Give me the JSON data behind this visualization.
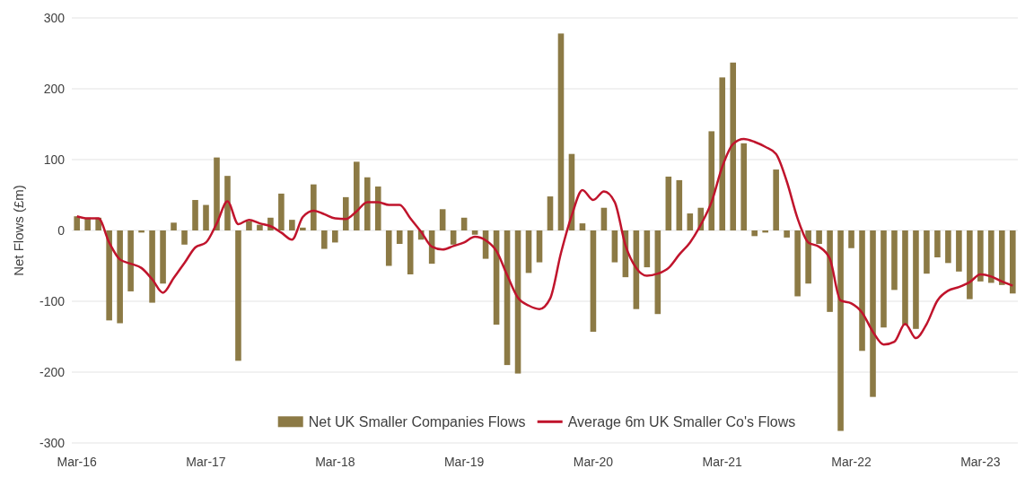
{
  "chart_data": {
    "type": "bar",
    "ylabel": "Net Flows (£m)",
    "categories": [
      "Mar-16",
      null,
      null,
      null,
      null,
      null,
      null,
      null,
      null,
      null,
      null,
      null,
      "Mar-17",
      null,
      null,
      null,
      null,
      null,
      null,
      null,
      null,
      null,
      null,
      null,
      "Mar-18",
      null,
      null,
      null,
      null,
      null,
      null,
      null,
      null,
      null,
      null,
      null,
      "Mar-19",
      null,
      null,
      null,
      null,
      null,
      null,
      null,
      null,
      null,
      null,
      null,
      "Mar-20",
      null,
      null,
      null,
      null,
      null,
      null,
      null,
      null,
      null,
      null,
      null,
      "Mar-21",
      null,
      null,
      null,
      null,
      null,
      null,
      null,
      null,
      null,
      null,
      null,
      "Mar-22",
      null,
      null,
      null,
      null,
      null,
      null,
      null,
      null,
      null,
      null,
      null,
      "Mar-23",
      null,
      null,
      null
    ],
    "series": [
      {
        "name": "Net UK Smaller Companies Flows",
        "color": "#8c7a45",
        "values": [
          20,
          18,
          18,
          -127,
          -131,
          -86,
          -3,
          -102,
          -75,
          11,
          -20,
          43,
          36,
          103,
          77,
          -184,
          13,
          8,
          18,
          52,
          15,
          4,
          65,
          -26,
          -17,
          47,
          97,
          75,
          62,
          -50,
          -19,
          -62,
          -13,
          -47,
          30,
          -20,
          18,
          -6,
          -40,
          -133,
          -190,
          -202,
          -60,
          -45,
          48,
          278,
          108,
          10,
          -143,
          32,
          -45,
          -66,
          -111,
          -52,
          -118,
          76,
          71,
          24,
          32,
          140,
          216,
          237,
          123,
          -8,
          -3,
          86,
          -10,
          -93,
          -75,
          -19,
          -115,
          -283,
          -25,
          -170,
          -235,
          -137,
          -84,
          -134,
          -139,
          -61,
          -38,
          -46,
          -58,
          -97,
          -72,
          -74,
          -77,
          -89
        ]
      },
      {
        "name": "Average 6m UK Smaller Co's Flows",
        "type": "line",
        "color": "#c0142c",
        "values": [
          20,
          17,
          17,
          -17,
          -41,
          -47,
          -53,
          -69,
          -88,
          -67,
          -46,
          -24,
          -17,
          10,
          41,
          9,
          15,
          10,
          6,
          -3,
          -13,
          19,
          28,
          23,
          17,
          16,
          27,
          40,
          40,
          36,
          36,
          17,
          -2,
          -23,
          -27,
          -22,
          -17,
          -9,
          -14,
          -29,
          -63,
          -95,
          -106,
          -111,
          -96,
          -32,
          21,
          57,
          43,
          55,
          40,
          -21,
          -53,
          -64,
          -61,
          -53,
          -34,
          -17,
          8,
          40,
          90,
          122,
          129,
          125,
          118,
          108,
          69,
          17,
          -17,
          -23,
          -40,
          -99,
          -103,
          -116,
          -143,
          -161,
          -157,
          -132,
          -152,
          -132,
          -99,
          -85,
          -80,
          -73,
          -62,
          -65,
          -72,
          -78
        ]
      }
    ],
    "ylim": [
      -300,
      300
    ],
    "yticks": [
      300,
      200,
      100,
      0,
      -100,
      -200,
      -300
    ],
    "grid": "y",
    "legend": "bottom",
    "line_style": "solid",
    "marker": "none"
  }
}
